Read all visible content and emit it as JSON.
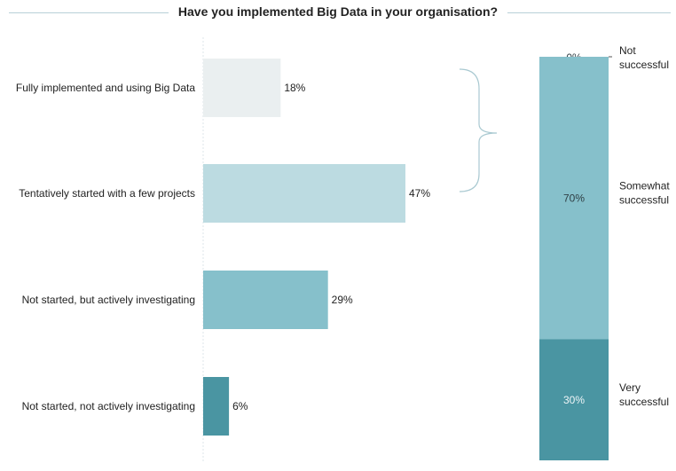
{
  "title": "Have you implemented Big Data in your organisation?",
  "chart_data": [
    {
      "type": "bar",
      "orientation": "horizontal",
      "categories": [
        "Fully implemented and using Big Data",
        "Tentatively started with a few projects",
        "Not started, but actively investigating",
        "Not started, not actively investigating"
      ],
      "values": [
        18,
        47,
        29,
        6
      ],
      "value_labels": [
        "18%",
        "47%",
        "29%",
        "6%"
      ],
      "colors": [
        "#eaeff0",
        "#bcdbe1",
        "#86c0cb",
        "#4a95a2"
      ],
      "xlim": [
        0,
        100
      ],
      "unit": "%"
    },
    {
      "type": "bar",
      "stacked": true,
      "segments": [
        {
          "label": "Not successful",
          "value": 0,
          "value_label": "0%",
          "color": "#bcdbe1"
        },
        {
          "label": "Somewhat successful",
          "value": 70,
          "value_label": "70%",
          "color": "#86c0cb"
        },
        {
          "label": "Very successful",
          "value": 30,
          "value_label": "30%",
          "color": "#4a95a2"
        }
      ],
      "ylim": [
        0,
        100
      ],
      "unit": "%"
    }
  ]
}
